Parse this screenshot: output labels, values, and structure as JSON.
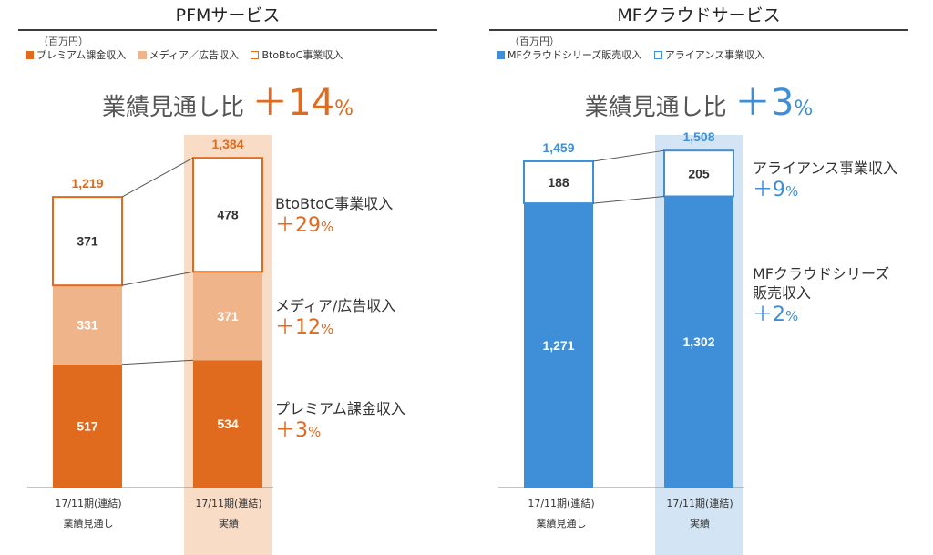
{
  "panels": [
    {
      "id": "pfm",
      "title": "PFMサービス",
      "unit": "（百万円）",
      "legend": [
        {
          "label": "プレミアム課金収入",
          "color": "#e06a1e",
          "style": "solid"
        },
        {
          "label": "メディア／広告収入",
          "color": "#f0b48a",
          "style": "solid"
        },
        {
          "label": "BtoBtoC事業収入",
          "color": "#e06a1e",
          "style": "outline"
        }
      ],
      "headline": {
        "text": "業績見通し比",
        "sign": "＋",
        "value": "14",
        "pct": "%",
        "color": "#e06a1e"
      },
      "annotations": [
        {
          "label": "BtoBtoC事業収入",
          "sign": "＋",
          "value": "29",
          "pct": "%"
        },
        {
          "label": "メディア/広告収入",
          "sign": "＋",
          "value": "12",
          "pct": "%"
        },
        {
          "label": "プレミアム課金収入",
          "sign": "＋",
          "value": "3",
          "pct": "%"
        }
      ],
      "categories": [
        {
          "line1": "17/11期(連結)",
          "line2": "業績見通し"
        },
        {
          "line1": "17/11期(連結)",
          "line2": "実績"
        }
      ]
    },
    {
      "id": "mf",
      "title": "MFクラウドサービス",
      "unit": "（百万円）",
      "legend": [
        {
          "label": "MFクラウドシリーズ販売収入",
          "color": "#3f8fd8",
          "style": "solid"
        },
        {
          "label": "アライアンス事業収入",
          "color": "#3f8fd8",
          "style": "outline"
        }
      ],
      "headline": {
        "text": "業績見通し比",
        "sign": "＋",
        "value": "3",
        "pct": "%",
        "color": "#3f8fd8"
      },
      "annotations": [
        {
          "label": "アライアンス事業収入",
          "sign": "＋",
          "value": "9",
          "pct": "%"
        },
        {
          "label": "MFクラウドシリーズ",
          "label2": "販売収入",
          "sign": "＋",
          "value": "2",
          "pct": "%"
        }
      ],
      "categories": [
        {
          "line1": "17/11期(連結)",
          "line2": "業績見通し"
        },
        {
          "line1": "17/11期(連結)",
          "line2": "実績"
        }
      ]
    }
  ],
  "chart_data": [
    {
      "type": "bar",
      "stacked": true,
      "title": "PFMサービス",
      "categories": [
        "17/11期(連結) 業績見通し",
        "17/11期(連結) 実績"
      ],
      "series": [
        {
          "name": "プレミアム課金収入",
          "values": [
            517,
            534
          ],
          "color": "#e06a1e"
        },
        {
          "name": "メディア／広告収入",
          "values": [
            331,
            371
          ],
          "color": "#f0b48a"
        },
        {
          "name": "BtoBtoC事業収入",
          "values": [
            371,
            478
          ],
          "color": "#ffffff"
        }
      ],
      "totals": [
        "1,219",
        "1,384"
      ],
      "value_labels": [
        [
          "517",
          "534"
        ],
        [
          "331",
          "371"
        ],
        [
          "371",
          "478"
        ]
      ],
      "highlight_category": 1,
      "ylim": [
        0,
        1384
      ]
    },
    {
      "type": "bar",
      "stacked": true,
      "title": "MFクラウドサービス",
      "categories": [
        "17/11期(連結) 業績見通し",
        "17/11期(連結) 実績"
      ],
      "series": [
        {
          "name": "MFクラウドシリーズ販売収入",
          "values": [
            1271,
            1302
          ],
          "color": "#3f8fd8"
        },
        {
          "name": "アライアンス事業収入",
          "values": [
            188,
            205
          ],
          "color": "#ffffff"
        }
      ],
      "totals": [
        "1,459",
        "1,508"
      ],
      "value_labels": [
        [
          "1,271",
          "1,302"
        ],
        [
          "188",
          "205"
        ]
      ],
      "highlight_category": 1,
      "ylim": [
        0,
        1508
      ]
    }
  ]
}
